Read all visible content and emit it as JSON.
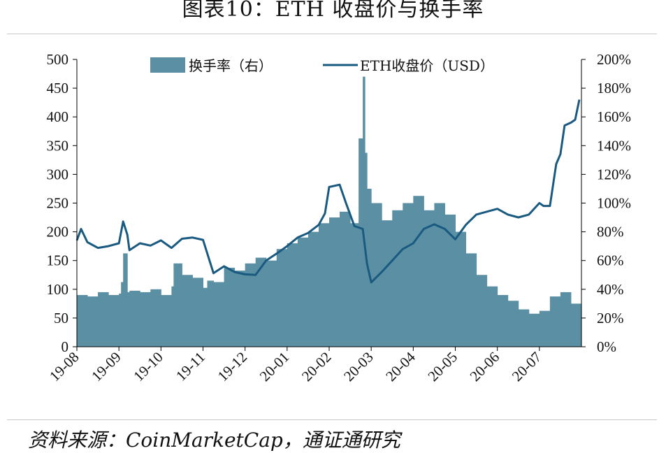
{
  "title": "图表10：ETH 收盘价与换手率",
  "source": "资料来源：CoinMarketCap，通证通研究",
  "colors": {
    "bar": "#5b8fa3",
    "line": "#1a5a80",
    "axis": "#000000",
    "rule": "#c8c8c8"
  },
  "chart_data": {
    "type": "bar+line",
    "categories": [
      "19-08",
      "19-09",
      "19-10",
      "19-11",
      "19-12",
      "20-01",
      "20-02",
      "20-03",
      "20-04",
      "20-05",
      "20-06",
      "20-07"
    ],
    "y_left": {
      "ylim": [
        0,
        500
      ],
      "ticks": [
        "0",
        "50",
        "100",
        "150",
        "200",
        "250",
        "300",
        "350",
        "400",
        "450",
        "500"
      ]
    },
    "y_right": {
      "ylim": [
        0,
        200
      ],
      "ticks": [
        "0%",
        "20%",
        "40%",
        "60%",
        "80%",
        "100%",
        "120%",
        "140%",
        "160%",
        "180%",
        "200%"
      ]
    },
    "legend": {
      "position": "top",
      "bar_label": "换手率（右）",
      "line_label": "ETH收盘价（USD）"
    },
    "series": [
      {
        "name": "换手率（右）",
        "kind": "bar",
        "axis": "right",
        "x": [
          0,
          0.25,
          0.5,
          0.75,
          1,
          1.05,
          1.1,
          1.2,
          1.25,
          1.5,
          1.75,
          2,
          2.25,
          2.3,
          2.5,
          2.75,
          3,
          3.1,
          3.25,
          3.5,
          3.75,
          4,
          4.25,
          4.5,
          4.75,
          5,
          5.25,
          5.5,
          5.75,
          6,
          6.25,
          6.5,
          6.7,
          6.8,
          6.85,
          6.9,
          7,
          7.25,
          7.5,
          7.75,
          8,
          8.25,
          8.5,
          8.75,
          9,
          9.25,
          9.5,
          9.75,
          10,
          10.25,
          10.5,
          10.75,
          11,
          11.25,
          11.5,
          11.75
        ],
        "values": [
          36,
          35,
          38,
          36,
          37,
          45,
          65,
          38,
          39,
          38,
          40,
          36,
          42,
          58,
          50,
          48,
          41,
          46,
          45,
          55,
          53,
          58,
          62,
          60,
          68,
          72,
          76,
          80,
          86,
          90,
          94,
          86,
          145,
          188,
          135,
          110,
          100,
          88,
          95,
          100,
          105,
          95,
          100,
          92,
          80,
          65,
          50,
          42,
          36,
          32,
          26,
          23,
          25,
          35,
          38,
          30
        ]
      },
      {
        "name": "ETH收盘价（USD）",
        "kind": "line",
        "axis": "left",
        "x": [
          0,
          0.1,
          0.25,
          0.5,
          0.75,
          1,
          1.1,
          1.2,
          1.25,
          1.5,
          1.75,
          2,
          2.25,
          2.5,
          2.75,
          3,
          3.25,
          3.5,
          3.75,
          4,
          4.25,
          4.5,
          4.75,
          5,
          5.25,
          5.5,
          5.75,
          5.9,
          6,
          6.25,
          6.4,
          6.6,
          6.8,
          6.9,
          7,
          7.25,
          7.5,
          7.75,
          8,
          8.25,
          8.5,
          8.75,
          9,
          9.25,
          9.5,
          9.75,
          10,
          10.25,
          10.5,
          10.75,
          11,
          11.1,
          11.25,
          11.4,
          11.5,
          11.6,
          11.75,
          11.85,
          11.95
        ],
        "values": [
          185,
          205,
          182,
          172,
          175,
          180,
          218,
          195,
          168,
          180,
          176,
          185,
          172,
          188,
          190,
          186,
          128,
          140,
          130,
          126,
          125,
          150,
          162,
          175,
          190,
          198,
          212,
          232,
          278,
          282,
          250,
          210,
          205,
          145,
          112,
          130,
          150,
          170,
          180,
          205,
          213,
          205,
          187,
          212,
          230,
          235,
          240,
          230,
          225,
          230,
          250,
          245,
          245,
          318,
          335,
          385,
          390,
          395,
          430
        ]
      }
    ]
  }
}
